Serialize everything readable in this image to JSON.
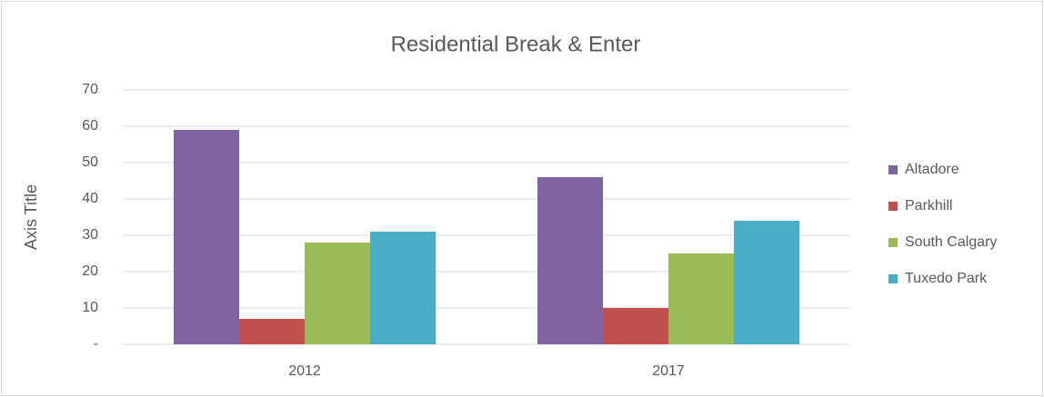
{
  "chart_data": {
    "type": "bar",
    "title": "Residential Break & Enter",
    "y_label": "Axis Title",
    "categories": [
      "2012",
      "2017"
    ],
    "series": [
      {
        "name": "Altadore",
        "color": "#8064a2",
        "values": [
          59,
          46
        ]
      },
      {
        "name": "Parkhill",
        "color": "#c0504d",
        "values": [
          7,
          10
        ]
      },
      {
        "name": "South Calgary",
        "color": "#9bbb59",
        "values": [
          28,
          25
        ]
      },
      {
        "name": "Tuxedo Park",
        "color": "#4bacc6",
        "values": [
          31,
          34
        ]
      }
    ],
    "ylim": [
      0,
      70
    ],
    "yticks": [
      {
        "value": 0,
        "label": "-"
      },
      10,
      20,
      30,
      40,
      50,
      60,
      70
    ],
    "grid": true,
    "legend": "right"
  }
}
